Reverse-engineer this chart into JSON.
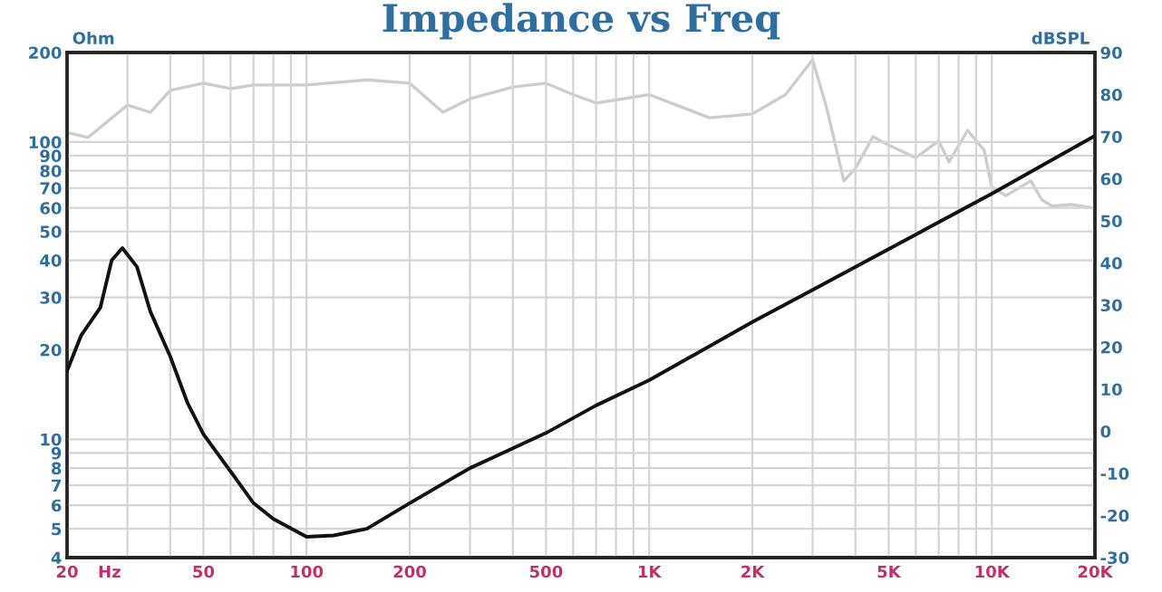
{
  "chart_data": {
    "type": "line",
    "title": "Impedance vs Freq",
    "xlabel": "Hz",
    "ylabel": "Ohm",
    "y2label": "dBSPL",
    "log": "xy",
    "grid": true,
    "marker": "none",
    "line_style": "solid",
    "xlim": [
      20,
      20000
    ],
    "xticks": [
      20,
      {
        "value": 30,
        "label": null
      },
      {
        "value": 40,
        "label": null
      },
      50,
      {
        "value": 60,
        "label": null
      },
      {
        "value": 70,
        "label": null
      },
      {
        "value": 80,
        "label": null
      },
      {
        "value": 90,
        "label": null
      },
      100,
      200,
      {
        "value": 300,
        "label": null
      },
      {
        "value": 400,
        "label": null
      },
      500,
      {
        "value": 600,
        "label": null
      },
      {
        "value": 700,
        "label": null
      },
      {
        "value": 800,
        "label": null
      },
      {
        "value": 900,
        "label": null
      },
      {
        "value": 1000,
        "label": "1K"
      },
      {
        "value": 2000,
        "label": "2K"
      },
      {
        "value": 3000,
        "label": null
      },
      {
        "value": 4000,
        "label": null
      },
      {
        "value": 5000,
        "label": "5K"
      },
      {
        "value": 6000,
        "label": null
      },
      {
        "value": 7000,
        "label": null
      },
      {
        "value": 8000,
        "label": null
      },
      {
        "value": 9000,
        "label": null
      },
      {
        "value": 10000,
        "label": "10K"
      },
      {
        "value": 20000,
        "label": "20K"
      }
    ],
    "ylim": [
      4,
      200
    ],
    "yticks": [
      4,
      5,
      6,
      7,
      8,
      9,
      10,
      20,
      30,
      40,
      50,
      60,
      70,
      80,
      90,
      100,
      200
    ],
    "y2lim": [
      -30,
      90
    ],
    "y2ticks": [
      -30,
      -20,
      -10,
      0,
      10,
      20,
      30,
      40,
      50,
      60,
      70,
      80,
      90
    ],
    "series": [
      {
        "color": "#111111",
        "x": [
          20,
          22,
          25,
          27,
          29,
          32,
          35,
          40,
          45,
          50,
          60,
          70,
          80,
          100,
          120,
          150,
          200,
          300,
          500,
          700,
          1000,
          2000,
          3000,
          10000,
          20000
        ],
        "values": [
          17,
          22.4,
          27.7,
          40,
          44,
          38,
          26.9,
          19,
          13.2,
          10.4,
          7.8,
          6.1,
          5.4,
          4.7,
          4.75,
          5.0,
          6.1,
          8.0,
          10.5,
          13,
          15.8,
          24.8,
          31.8,
          67,
          105
        ]
      },
      {
        "color": "#cccccc",
        "axis": "y2",
        "x": [
          20,
          23,
          30,
          35,
          40,
          50,
          60,
          70,
          100,
          150,
          200,
          250,
          300,
          400,
          500,
          600,
          700,
          1000,
          1500,
          2000,
          2500,
          3000,
          3300,
          3700,
          4000,
          4500,
          5000,
          6000,
          7000,
          7500,
          8500,
          9500,
          10000,
          11000,
          13000,
          14000,
          15000,
          17000,
          20000
        ],
        "values": [
          71,
          69.8,
          77.5,
          75.8,
          81,
          82.7,
          81.4,
          82.3,
          82.3,
          83.5,
          82.7,
          75.8,
          79,
          81.8,
          82.7,
          80,
          78,
          80,
          74.5,
          75.4,
          80,
          88.3,
          76.7,
          59.5,
          62.5,
          70,
          68,
          65,
          69,
          64,
          71.5,
          66.8,
          58,
          56,
          59.5,
          55,
          53.5,
          53.9,
          53
        ]
      }
    ]
  }
}
